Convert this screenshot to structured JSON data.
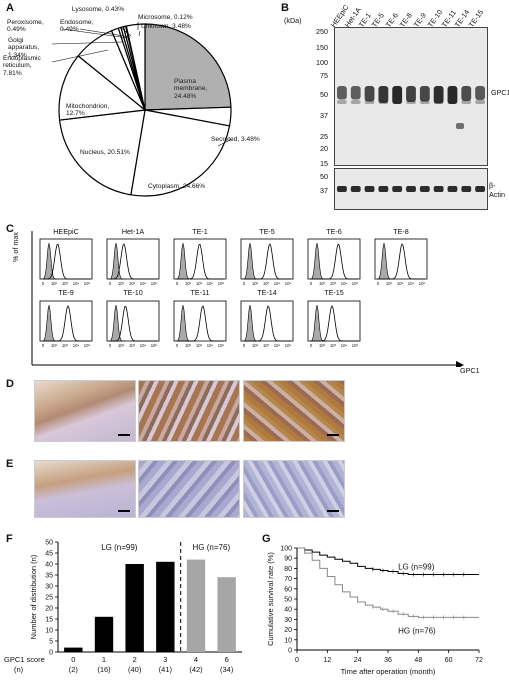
{
  "panels": {
    "A": "A",
    "B": "B",
    "C": "C",
    "D": "D",
    "E": "E",
    "F": "F",
    "G": "G"
  },
  "chart_data": [
    {
      "type": "pie",
      "panel": "A",
      "slices": [
        {
          "label": "Plasma membrane",
          "value": 24.48,
          "pct": "24.48%",
          "highlight": true
        },
        {
          "label": "Secreted",
          "value": 3.48,
          "pct": "3.48%"
        },
        {
          "label": "Cytoplasm",
          "value": 24.66,
          "pct": "24.66%"
        },
        {
          "label": "Nucleus",
          "value": 20.51,
          "pct": "20.51%"
        },
        {
          "label": "Mitochondrion",
          "value": 12.7,
          "pct": "12.7%"
        },
        {
          "label": "Endoplasmic reticulum",
          "value": 7.81,
          "pct": "7.81%"
        },
        {
          "label": "Golgi apparatus",
          "value": 1.34,
          "pct": "1.34%"
        },
        {
          "label": "Peroxisome",
          "value": 0.49,
          "pct": "0.49%"
        },
        {
          "label": "Endosome",
          "value": 0.49,
          "pct": "0.49%"
        },
        {
          "label": "Lysosome",
          "value": 0.43,
          "pct": "0.43%"
        },
        {
          "label": "Microsome",
          "value": 0.12,
          "pct": "0.12%"
        },
        {
          "label": "Unknown",
          "value": 3.48,
          "pct": "3.48%"
        }
      ],
      "colors": {
        "highlight": "#b0b0b0",
        "default": "#ffffff"
      }
    },
    {
      "type": "bar",
      "panel": "F",
      "ylabel": "Number of distribution (n)",
      "ylim": [
        0,
        50
      ],
      "yticks": [
        0,
        5,
        10,
        15,
        20,
        25,
        30,
        35,
        40,
        45,
        50
      ],
      "xlabel_row": "GPC1 score",
      "n_row_label": "(n)",
      "categories": [
        "0",
        "1",
        "2",
        "3",
        "4",
        "6"
      ],
      "n_labels": [
        "(2)",
        "(16)",
        "(40)",
        "(41)",
        "(42)",
        "(34)"
      ],
      "values": [
        2,
        16,
        40,
        41,
        42,
        34
      ],
      "groups": [
        "LG",
        "LG",
        "LG",
        "LG",
        "HG",
        "HG"
      ],
      "group_labels": {
        "LG": "LG (n=99)",
        "HG": "HG (n=76)"
      },
      "colors": {
        "LG": "#000000",
        "HG": "#a6a6a6"
      }
    },
    {
      "type": "line",
      "panel": "G",
      "ylabel": "Cumulative survival rate (%)",
      "xlabel": "Time after operation (month)",
      "xticks": [
        0,
        12,
        24,
        36,
        48,
        60,
        72
      ],
      "yticks": [
        0,
        10,
        20,
        30,
        40,
        50,
        60,
        70,
        80,
        90,
        100
      ],
      "xlim": [
        0,
        72
      ],
      "ylim": [
        0,
        100
      ],
      "series": [
        {
          "name": "LG (n=99)",
          "color": "#000000",
          "x": [
            0,
            3,
            6,
            9,
            12,
            15,
            18,
            21,
            24,
            27,
            30,
            33,
            36,
            40,
            44,
            50,
            60,
            70
          ],
          "y": [
            100,
            98,
            96,
            93,
            91,
            89,
            87,
            85,
            82,
            80,
            79,
            78,
            77,
            75,
            74,
            74,
            74,
            74
          ]
        },
        {
          "name": "HG (n=76)",
          "color": "#888888",
          "x": [
            0,
            3,
            6,
            9,
            12,
            15,
            18,
            21,
            24,
            27,
            30,
            33,
            36,
            40,
            44,
            48,
            52,
            60,
            70
          ],
          "y": [
            100,
            95,
            88,
            80,
            72,
            64,
            57,
            52,
            47,
            44,
            42,
            40,
            38,
            35,
            33,
            32,
            32,
            32,
            32
          ]
        }
      ]
    }
  ],
  "blot": {
    "kda_label": "(kDa)",
    "lanes": [
      "HEEpiC",
      "Het-1A",
      "TE-1",
      "TE-5",
      "TE-6",
      "TE-8",
      "TE-9",
      "TE-10",
      "TE-11",
      "TE-14",
      "TE-15"
    ],
    "markers_top": [
      "250",
      "150",
      "100",
      "75",
      "50",
      "37",
      "25",
      "20",
      "15"
    ],
    "markers_bottom": [
      "50",
      "37"
    ],
    "gpc1_label": "GPC1",
    "actin_label": "β-Actin"
  },
  "flow": {
    "ylabel": "% of max",
    "xlabel": "GPC1",
    "row1": [
      "HEEpiC",
      "Het-1A",
      "TE-1",
      "TE-5",
      "TE-6",
      "TE-8"
    ],
    "row2": [
      "TE-9",
      "TE-10",
      "TE-11",
      "TE-14",
      "TE-15"
    ],
    "ticks": [
      "0",
      "10²",
      "10³",
      "10⁴",
      "10⁵"
    ]
  },
  "pie_labels": {
    "lysosome": "Lysosome, 0.43%",
    "peroxisome": "Peroxisome, 0.49%",
    "endosome": "Endosome, 0.49%",
    "microsome": "Microsome, 0.12%",
    "unknown": "Unknown, 3.48%",
    "golgi": "Golgi apparatus, 1.34%",
    "er": "Endoplasmic reticulum, 7.81%",
    "mito": "Mitochondrion, 12.7%",
    "nucleus": "Nucleus, 20.51%",
    "cyto": "Cytoplasm, 24.66%",
    "secreted": "Secreted, 3.48%",
    "plasma": "Plasma membrane, 24.48%"
  }
}
